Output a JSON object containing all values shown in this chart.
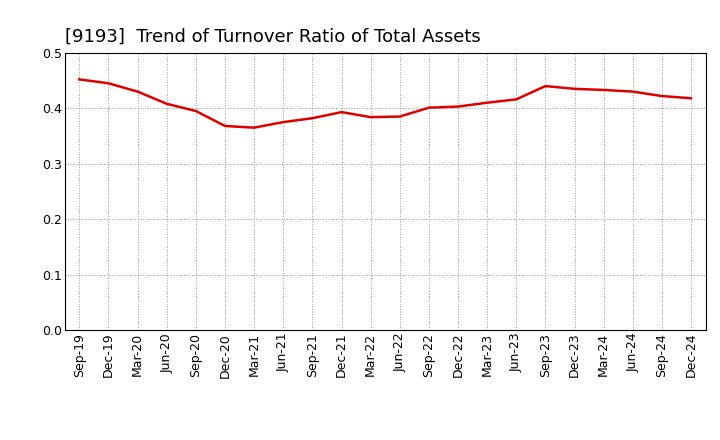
{
  "title": "[9193]  Trend of Turnover Ratio of Total Assets",
  "x_labels": [
    "Sep-19",
    "Dec-19",
    "Mar-20",
    "Jun-20",
    "Sep-20",
    "Dec-20",
    "Mar-21",
    "Jun-21",
    "Sep-21",
    "Dec-21",
    "Mar-22",
    "Jun-22",
    "Sep-22",
    "Dec-22",
    "Mar-23",
    "Jun-23",
    "Sep-23",
    "Dec-23",
    "Mar-24",
    "Jun-24",
    "Sep-24",
    "Dec-24"
  ],
  "values": [
    0.452,
    0.445,
    0.43,
    0.408,
    0.395,
    0.368,
    0.365,
    0.375,
    0.382,
    0.393,
    0.384,
    0.385,
    0.401,
    0.403,
    0.41,
    0.416,
    0.44,
    0.435,
    0.433,
    0.43,
    0.422,
    0.418
  ],
  "ylim": [
    0.0,
    0.5
  ],
  "yticks": [
    0.0,
    0.1,
    0.2,
    0.3,
    0.4,
    0.5
  ],
  "line_color": "#dd0000",
  "line_width": 1.8,
  "background_color": "#ffffff",
  "grid_color": "#999999",
  "title_fontsize": 13,
  "tick_fontsize": 9
}
